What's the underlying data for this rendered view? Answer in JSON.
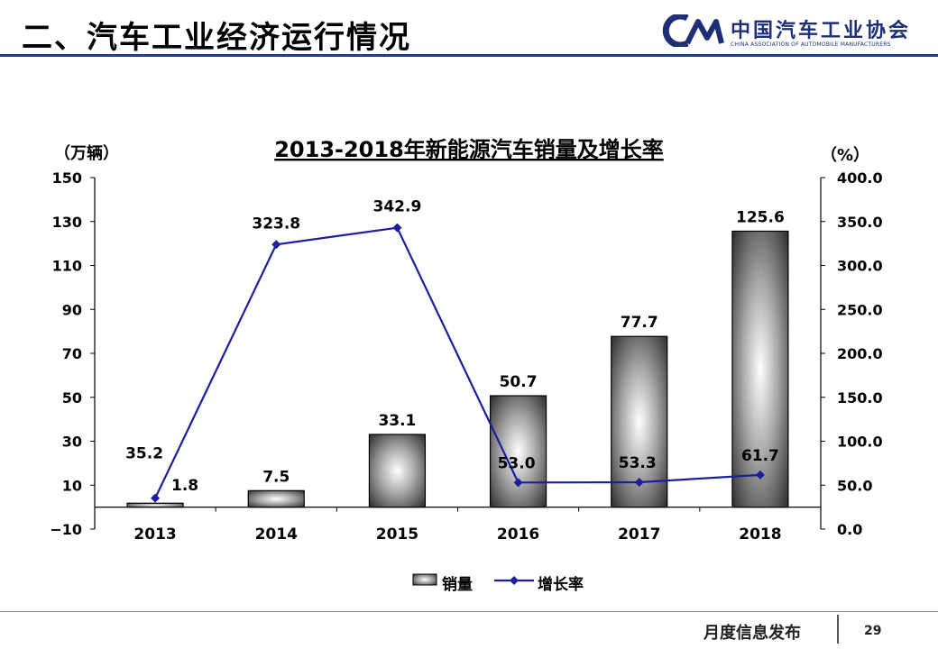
{
  "slide": {
    "title": "二、汽车工业经济运行情况",
    "logo_cn": "中国汽车工业协会",
    "logo_en": "CHINA ASSOCIATION OF AUTOMOBILE MANUFACTURERS",
    "footer": "月度信息发布",
    "page": "29"
  },
  "chart_data": {
    "type": "bar",
    "title": "2013-2018年新能源汽车销量及增长率",
    "ylabel": "（万辆）",
    "y2label": "（%）",
    "categories": [
      "2013",
      "2014",
      "2015",
      "2016",
      "2017",
      "2018"
    ],
    "ylim": [
      -10,
      150
    ],
    "yticks": [
      "150",
      "130",
      "110",
      "90",
      "70",
      "50",
      "30",
      "10",
      "−10"
    ],
    "y2lim": [
      0,
      400
    ],
    "y2ticks": [
      "400.0",
      "350.0",
      "300.0",
      "250.0",
      "200.0",
      "150.0",
      "100.0",
      "50.0",
      "0.0"
    ],
    "series": [
      {
        "name": "销量",
        "type": "bar",
        "values": [
          1.8,
          7.5,
          33.1,
          50.7,
          77.7,
          125.6
        ],
        "labels": [
          "1.8",
          "7.5",
          "33.1",
          "50.7",
          "77.7",
          "125.6"
        ]
      },
      {
        "name": "增长率",
        "type": "line",
        "axis": "right",
        "values": [
          35.2,
          323.8,
          342.9,
          53.0,
          53.3,
          61.7
        ],
        "labels": [
          "35.2",
          "323.8",
          "342.9",
          "53.0",
          "53.3",
          "61.7"
        ]
      }
    ],
    "legend": "bottom",
    "grid": false,
    "colors": {
      "line": "#1c1f9c",
      "bar": "#8a8a8a"
    }
  }
}
